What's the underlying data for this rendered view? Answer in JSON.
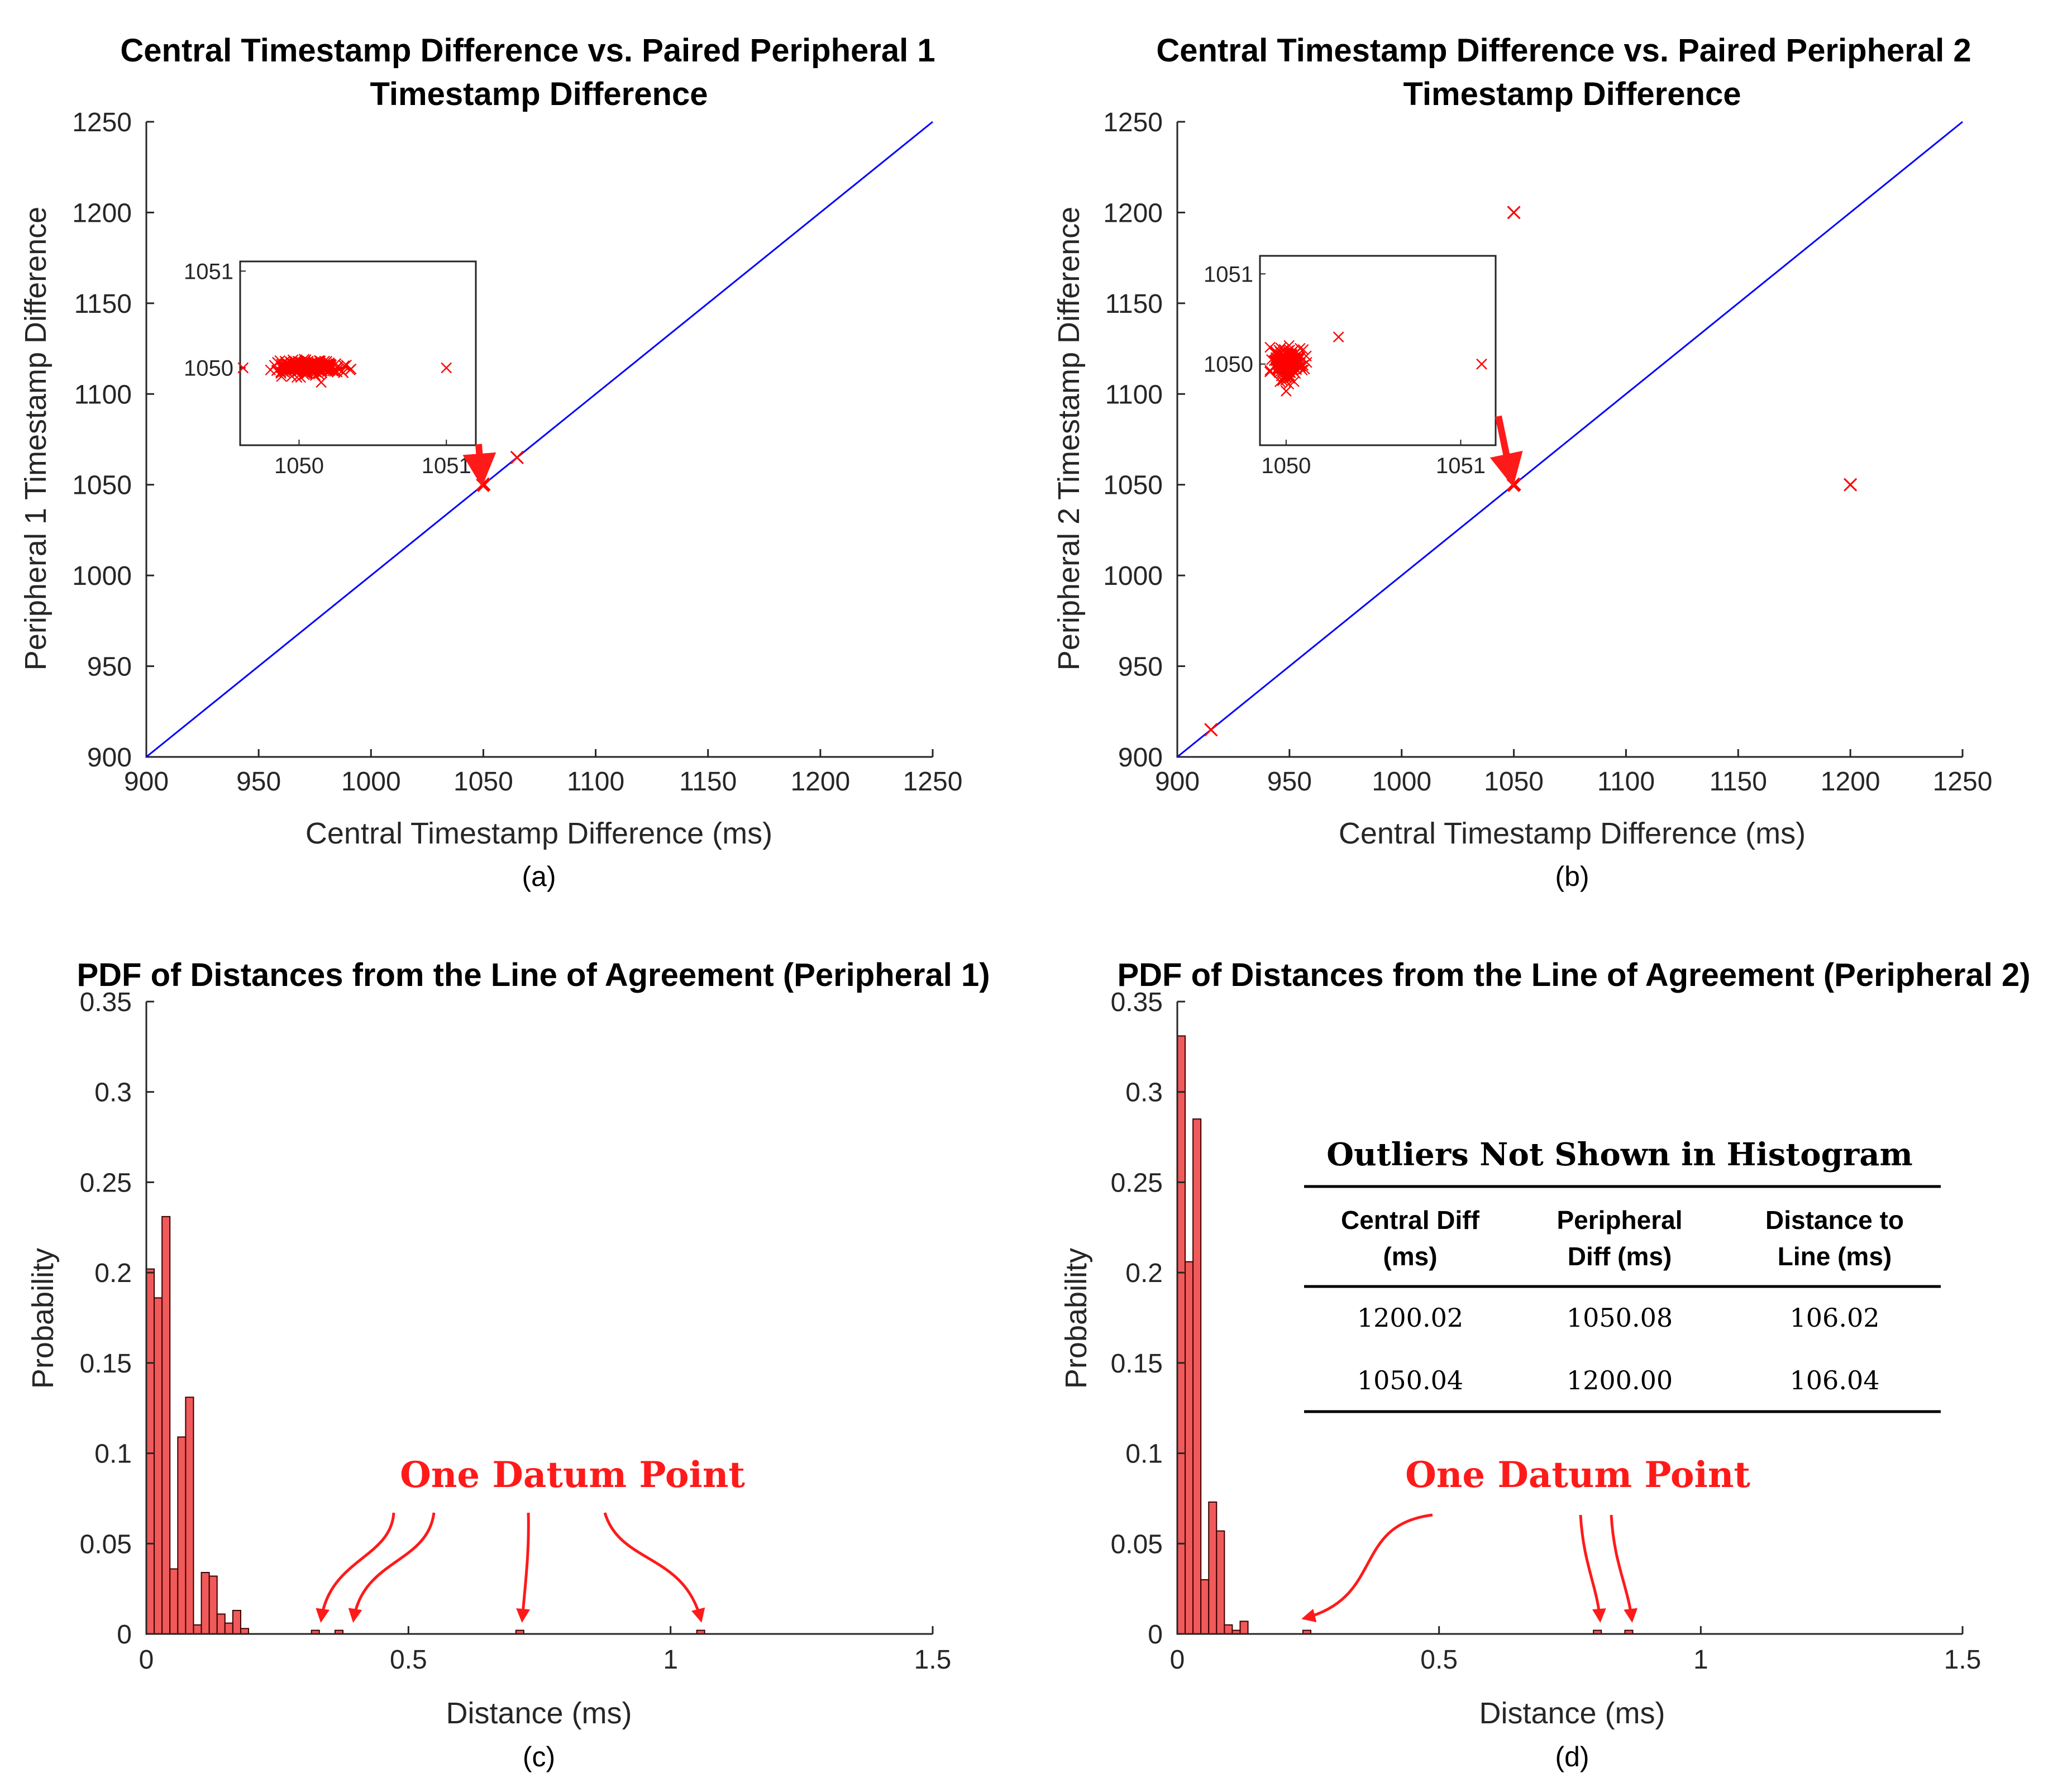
{
  "colors": {
    "marker": "#ff0000",
    "line": "#0000ff",
    "bar_fill": "#f05a5a",
    "bar_edge": "#3a0000",
    "axis": "#262626",
    "annot": "#ff1a1a"
  },
  "chart_data": [
    {
      "id": "a",
      "type": "scatter",
      "title_line1": "Central Timestamp Difference vs. Paired Peripheral 1",
      "title_line2": "Timestamp Difference",
      "xlabel": "Central Timestamp Difference (ms)",
      "ylabel": "Peripheral 1 Timestamp Difference",
      "caption": "(a)",
      "xlim": [
        900,
        1250
      ],
      "ylim": [
        900,
        1250
      ],
      "xticks": [
        "900",
        "950",
        "1000",
        "1050",
        "1100",
        "1150",
        "1200",
        "1250"
      ],
      "yticks": [
        "900",
        "950",
        "1000",
        "1050",
        "1100",
        "1150",
        "1200",
        "1250"
      ],
      "line_of_agreement": [
        [
          900,
          900
        ],
        [
          1250,
          1250
        ]
      ],
      "points": [
        [
          1050,
          1050
        ],
        [
          1065,
          1065
        ]
      ],
      "inset": {
        "xlim": [
          1049.6,
          1051.2
        ],
        "ylim": [
          1049.2,
          1051.1
        ],
        "xticks": [
          "1050",
          "1051"
        ],
        "yticks": [
          "1050",
          "1051"
        ],
        "cluster": {
          "cx": 1050.07,
          "cy": 1050.01,
          "sx": 0.1,
          "sy": 0.035,
          "n": 260
        },
        "points": [
          [
            1051.0,
            1050.0
          ],
          [
            1050.15,
            1049.85
          ],
          [
            1050.3,
            1049.95
          ],
          [
            1049.62,
            1050.0
          ]
        ]
      }
    },
    {
      "id": "b",
      "type": "scatter",
      "title_line1": "Central Timestamp Difference vs. Paired Peripheral 2",
      "title_line2": "Timestamp Difference",
      "xlabel": "Central Timestamp Difference (ms)",
      "ylabel": "Peripheral 2 Timestamp Difference",
      "caption": "(b)",
      "xlim": [
        900,
        1250
      ],
      "ylim": [
        900,
        1250
      ],
      "xticks": [
        "900",
        "950",
        "1000",
        "1050",
        "1100",
        "1150",
        "1200",
        "1250"
      ],
      "yticks": [
        "900",
        "950",
        "1000",
        "1050",
        "1100",
        "1150",
        "1200",
        "1250"
      ],
      "line_of_agreement": [
        [
          900,
          900
        ],
        [
          1250,
          1250
        ]
      ],
      "points": [
        [
          1050,
          1050
        ],
        [
          915,
          915
        ],
        [
          1050,
          1200
        ],
        [
          1200,
          1050
        ]
      ],
      "inset": {
        "xlim": [
          1049.85,
          1051.2
        ],
        "ylim": [
          1049.1,
          1051.2
        ],
        "xticks": [
          "1050",
          "1051"
        ],
        "yticks": [
          "1050",
          "1051"
        ],
        "cluster": {
          "cx": 1050.0,
          "cy": 1050.0,
          "sx": 0.04,
          "sy": 0.08,
          "n": 200
        },
        "points": [
          [
            1050.3,
            1050.3
          ],
          [
            1051.12,
            1050.0
          ],
          [
            1050.0,
            1049.7
          ]
        ]
      }
    },
    {
      "id": "c",
      "type": "bar",
      "title": "PDF of Distances from the Line of Agreement (Peripheral 1)",
      "xlabel": "Distance (ms)",
      "ylabel": "Probability",
      "caption": "(c)",
      "xlim": [
        0,
        1.5
      ],
      "ylim": [
        0,
        0.35
      ],
      "xticks": [
        "0",
        "0.5",
        "1",
        "1.5"
      ],
      "yticks": [
        "0",
        "0.05",
        "0.1",
        "0.15",
        "0.2",
        "0.25",
        "0.3",
        "0.35"
      ],
      "bin_width": 0.015,
      "values": [
        0.202,
        0.186,
        0.231,
        0.036,
        0.109,
        0.131,
        0.005,
        0.034,
        0.032,
        0.011,
        0.006,
        0.013,
        0.003,
        0,
        0,
        0,
        0,
        0,
        0,
        0,
        0,
        0.002,
        0,
        0,
        0.002,
        0,
        0,
        0,
        0,
        0,
        0,
        0,
        0,
        0,
        0,
        0,
        0,
        0,
        0,
        0,
        0,
        0,
        0,
        0,
        0,
        0,
        0,
        0.002,
        0,
        0,
        0,
        0,
        0,
        0,
        0,
        0,
        0,
        0,
        0,
        0,
        0,
        0,
        0,
        0,
        0,
        0,
        0,
        0,
        0,
        0,
        0.002,
        0,
        0,
        0,
        0,
        0,
        0,
        0,
        0,
        0
      ],
      "annotation": "One Datum Point"
    },
    {
      "id": "d",
      "type": "bar",
      "title": "PDF of Distances from the Line of Agreement (Peripheral 2)",
      "xlabel": "Distance (ms)",
      "ylabel": "Probability",
      "caption": "(d)",
      "xlim": [
        0,
        1.5
      ],
      "ylim": [
        0,
        0.35
      ],
      "xticks": [
        "0",
        "0.5",
        "1",
        "1.5"
      ],
      "yticks": [
        "0",
        "0.05",
        "0.1",
        "0.15",
        "0.2",
        "0.25",
        "0.3",
        "0.35"
      ],
      "bin_width": 0.015,
      "values": [
        0.331,
        0.206,
        0.285,
        0.03,
        0.073,
        0.057,
        0.005,
        0.002,
        0.007,
        0,
        0,
        0,
        0,
        0,
        0,
        0,
        0.002,
        0,
        0,
        0,
        0,
        0,
        0,
        0,
        0,
        0,
        0,
        0,
        0,
        0,
        0,
        0,
        0,
        0,
        0,
        0,
        0,
        0,
        0,
        0,
        0,
        0,
        0,
        0,
        0,
        0,
        0,
        0,
        0,
        0,
        0,
        0,
        0,
        0.002,
        0,
        0,
        0,
        0.002,
        0,
        0,
        0,
        0,
        0,
        0,
        0,
        0,
        0,
        0,
        0,
        0,
        0,
        0,
        0,
        0,
        0,
        0,
        0,
        0,
        0,
        0
      ],
      "annotation": "One Datum Point",
      "table": {
        "title": "Outliers Not Shown in Histogram",
        "headers": [
          [
            "Central Diff",
            "(ms)"
          ],
          [
            "Peripheral",
            "Diff (ms)"
          ],
          [
            "Distance to",
            "Line (ms)"
          ]
        ],
        "rows": [
          [
            "1200.02",
            "1050.08",
            "106.02"
          ],
          [
            "1050.04",
            "1200.00",
            "106.04"
          ]
        ]
      }
    }
  ]
}
